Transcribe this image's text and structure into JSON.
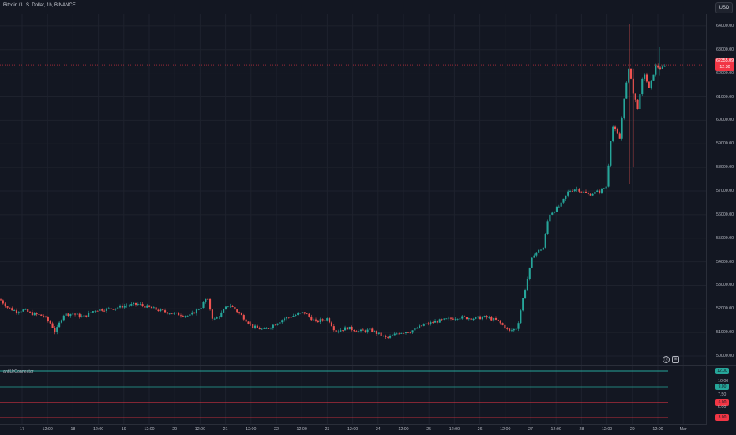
{
  "header": {
    "symbol": "Bitcoin / U.S. Dollar, 1h, BINANCE",
    "currency_button": "USD"
  },
  "price_axis": {
    "ticks": [
      "64000.00",
      "63000.00",
      "62000.00",
      "61000.00",
      "60000.00",
      "59000.00",
      "58000.00",
      "57000.00",
      "56000.00",
      "55000.00",
      "54000.00",
      "53000.00",
      "52000.00",
      "51000.00",
      "50000.00"
    ],
    "last_price": "62355.09",
    "countdown": "12:30"
  },
  "indicator": {
    "name": "antiUrConnector",
    "ticks": [
      "10.00",
      "7.50",
      "5.00"
    ],
    "levels": [
      {
        "value": "12.00",
        "color": "#26a69a"
      },
      {
        "value": "9.00",
        "color": "#26a69a"
      },
      {
        "value": "6.00",
        "color": "#f23645"
      },
      {
        "value": "3.00",
        "color": "#f23645"
      }
    ]
  },
  "time_axis": [
    "17",
    "12:00",
    "18",
    "12:00",
    "19",
    "12:00",
    "20",
    "12:00",
    "21",
    "12:00",
    "22",
    "12:00",
    "23",
    "12:00",
    "24",
    "12:00",
    "25",
    "12:00",
    "26",
    "12:00",
    "27",
    "12:00",
    "28",
    "12:00",
    "29",
    "12:00",
    "Mar"
  ],
  "controls": {
    "circle_icon": "settings-circle-icon",
    "box_icon": "log-scale-box-icon"
  },
  "colors": {
    "up": "#26a69a",
    "down": "#ef5350",
    "background": "#131722"
  },
  "chart_data": {
    "type": "candlestick",
    "title": "Bitcoin / U.S. Dollar, 1h, BINANCE",
    "ylim": [
      49700,
      64500
    ],
    "anchors": [
      [
        0,
        52400
      ],
      [
        10,
        52050
      ],
      [
        20,
        51900
      ],
      [
        30,
        51950
      ],
      [
        40,
        51800
      ],
      [
        55,
        51700
      ],
      [
        65,
        51350
      ],
      [
        70,
        51000
      ],
      [
        80,
        51750
      ],
      [
        92,
        51800
      ],
      [
        105,
        51650
      ],
      [
        120,
        51950
      ],
      [
        140,
        52000
      ],
      [
        160,
        52150
      ],
      [
        175,
        52200
      ],
      [
        190,
        52050
      ],
      [
        205,
        51900
      ],
      [
        220,
        51800
      ],
      [
        240,
        51700
      ],
      [
        255,
        52100
      ],
      [
        262,
        52500
      ],
      [
        270,
        51500
      ],
      [
        280,
        51800
      ],
      [
        290,
        52200
      ],
      [
        305,
        51750
      ],
      [
        320,
        51250
      ],
      [
        335,
        51100
      ],
      [
        345,
        51300
      ],
      [
        360,
        51600
      ],
      [
        375,
        51750
      ],
      [
        385,
        51850
      ],
      [
        400,
        51450
      ],
      [
        415,
        51600
      ],
      [
        425,
        51050
      ],
      [
        440,
        51200
      ],
      [
        455,
        51050
      ],
      [
        470,
        51100
      ],
      [
        490,
        50750
      ],
      [
        505,
        51000
      ],
      [
        520,
        51050
      ],
      [
        535,
        51300
      ],
      [
        550,
        51450
      ],
      [
        565,
        51550
      ],
      [
        580,
        51650
      ],
      [
        600,
        51600
      ],
      [
        615,
        51650
      ],
      [
        630,
        51500
      ],
      [
        645,
        51050
      ],
      [
        655,
        51200
      ],
      [
        662,
        52400
      ],
      [
        668,
        53300
      ],
      [
        675,
        54300
      ],
      [
        688,
        54600
      ],
      [
        695,
        56000
      ],
      [
        710,
        56400
      ],
      [
        720,
        57000
      ],
      [
        730,
        57100
      ],
      [
        745,
        56850
      ],
      [
        760,
        57000
      ],
      [
        768,
        57200
      ],
      [
        775,
        59800
      ],
      [
        785,
        59200
      ],
      [
        790,
        60900
      ],
      [
        797,
        62300
      ],
      [
        802,
        61100
      ],
      [
        808,
        60500
      ],
      [
        815,
        62100
      ],
      [
        822,
        61300
      ],
      [
        830,
        62300
      ],
      [
        838,
        62200
      ],
      [
        845,
        62355
      ]
    ]
  }
}
